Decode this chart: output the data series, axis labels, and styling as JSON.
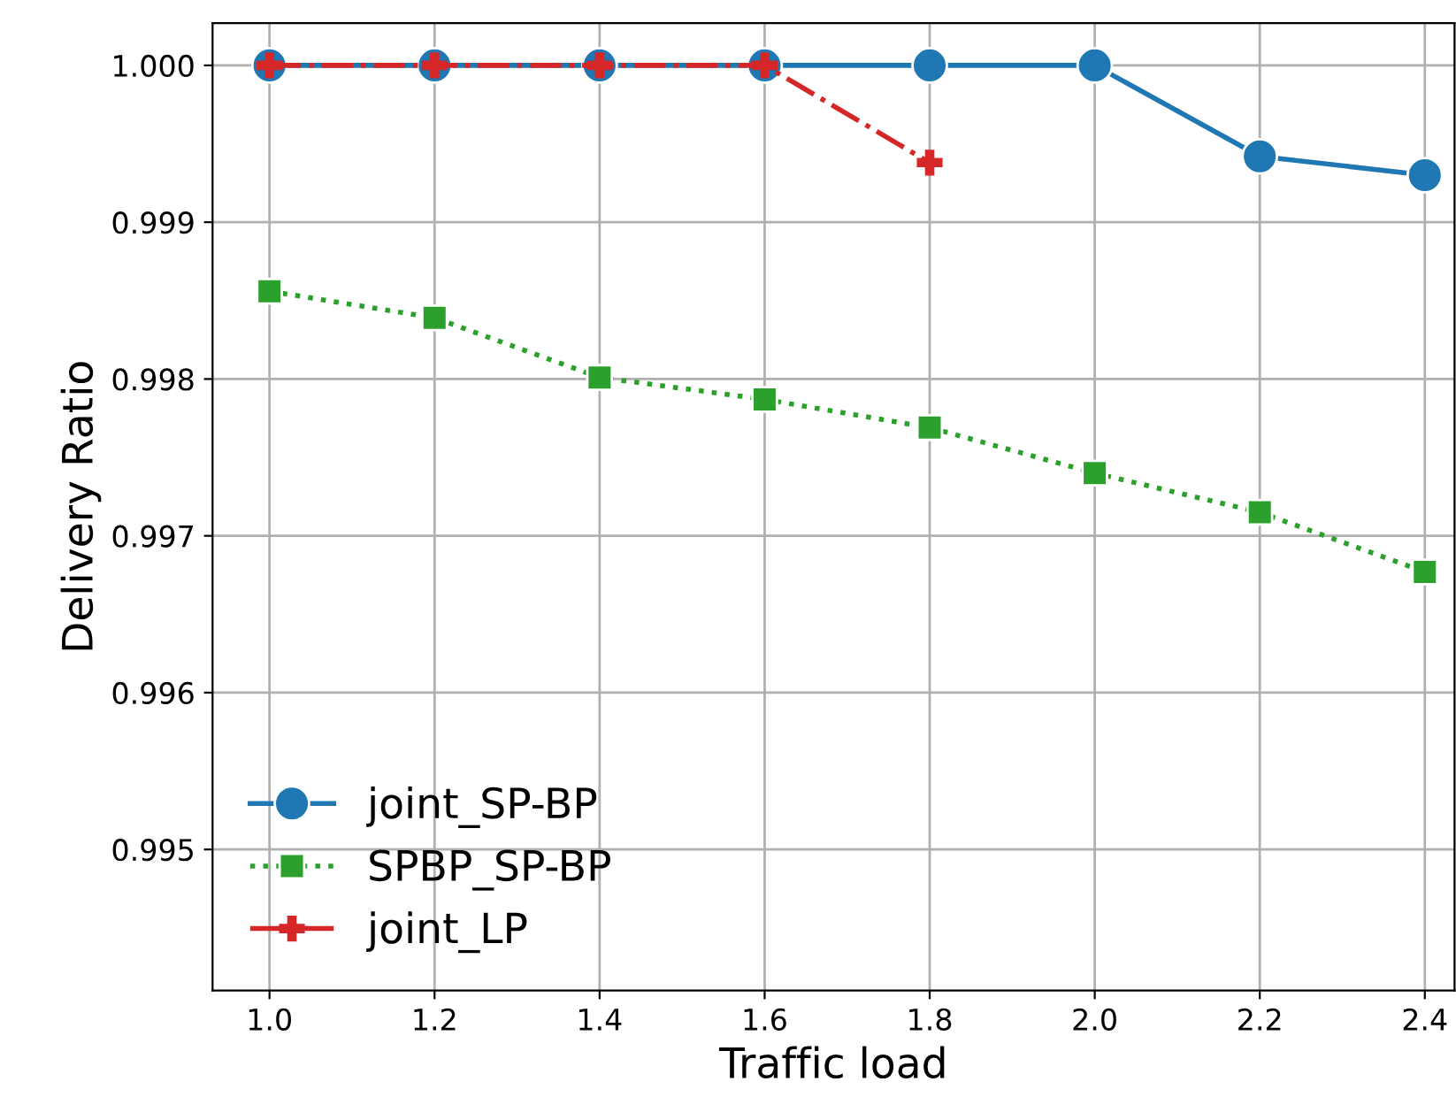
{
  "chart_data": {
    "type": "line",
    "xlabel": "Traffic load",
    "ylabel": "Delivery Ratio",
    "x": [
      1.0,
      1.2,
      1.4,
      1.6,
      1.8,
      2.0,
      2.2,
      2.4
    ],
    "series": [
      {
        "name": "joint_SP-BP",
        "color": "#1f77b4",
        "marker": "circle",
        "line_style": "solid",
        "values": [
          1.0,
          1.0,
          1.0,
          1.0,
          1.0,
          1.0,
          0.99942,
          0.9993
        ]
      },
      {
        "name": "SPBP_SP-BP",
        "color": "#2ca02c",
        "marker": "square",
        "line_style": "dotted",
        "values": [
          0.99856,
          0.99839,
          0.99801,
          0.99787,
          0.99769,
          0.9974,
          0.99715,
          0.99677
        ]
      },
      {
        "name": "joint_LP",
        "color": "#d62728",
        "marker": "cross",
        "line_style": "dashdot",
        "values": [
          1.0,
          1.0,
          1.0,
          1.0,
          0.99938,
          null,
          null,
          null
        ]
      }
    ],
    "xlim": [
      0.931,
      2.436
    ],
    "ylim": [
      0.9941,
      1.00027
    ],
    "xticks": [
      {
        "value": 1.0,
        "label": "1.0"
      },
      {
        "value": 1.2,
        "label": "1.2"
      },
      {
        "value": 1.4,
        "label": "1.4"
      },
      {
        "value": 1.6,
        "label": "1.6"
      },
      {
        "value": 1.8,
        "label": "1.8"
      },
      {
        "value": 2.0,
        "label": "2.0"
      },
      {
        "value": 2.2,
        "label": "2.2"
      },
      {
        "value": 2.4,
        "label": "2.4"
      }
    ],
    "yticks": [
      {
        "value": 0.995,
        "label": "0.995"
      },
      {
        "value": 0.996,
        "label": "0.996"
      },
      {
        "value": 0.997,
        "label": "0.997"
      },
      {
        "value": 0.998,
        "label": "0.998"
      },
      {
        "value": 0.999,
        "label": "0.999"
      },
      {
        "value": 1.0,
        "label": "1.000"
      }
    ],
    "grid": true,
    "legend": "bottom left"
  }
}
